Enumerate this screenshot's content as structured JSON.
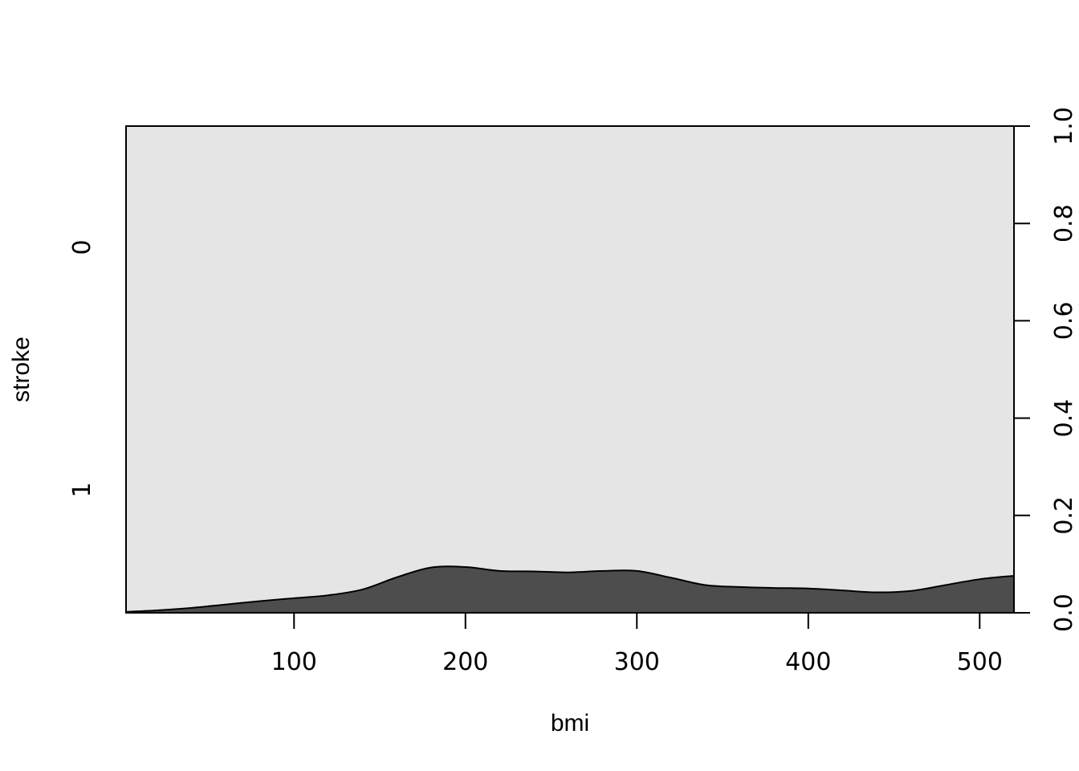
{
  "chart_data": {
    "type": "area",
    "subtype": "spinogram-conditional-density",
    "xlabel": "bmi",
    "ylabel": "stroke",
    "xlim": [
      2,
      520
    ],
    "ylim": [
      0,
      1
    ],
    "x_ticks": [
      100,
      200,
      300,
      400,
      500
    ],
    "y_right_ticks": [
      "0.0",
      "0.2",
      "0.4",
      "0.6",
      "0.8",
      "1.0"
    ],
    "y_left_categories": [
      "0",
      "1"
    ],
    "series": [
      {
        "name": "1",
        "color": "#4d4d4d",
        "x": [
          2,
          20,
          40,
          60,
          80,
          100,
          120,
          140,
          160,
          180,
          200,
          220,
          240,
          260,
          280,
          300,
          320,
          340,
          360,
          380,
          400,
          420,
          440,
          460,
          480,
          500,
          520
        ],
        "y": [
          0.002,
          0.005,
          0.01,
          0.017,
          0.024,
          0.03,
          0.036,
          0.048,
          0.073,
          0.093,
          0.094,
          0.086,
          0.085,
          0.083,
          0.086,
          0.086,
          0.072,
          0.057,
          0.053,
          0.051,
          0.05,
          0.046,
          0.042,
          0.045,
          0.057,
          0.069,
          0.076
        ]
      },
      {
        "name": "0",
        "color": "#e5e5e5"
      }
    ],
    "grid": false
  }
}
